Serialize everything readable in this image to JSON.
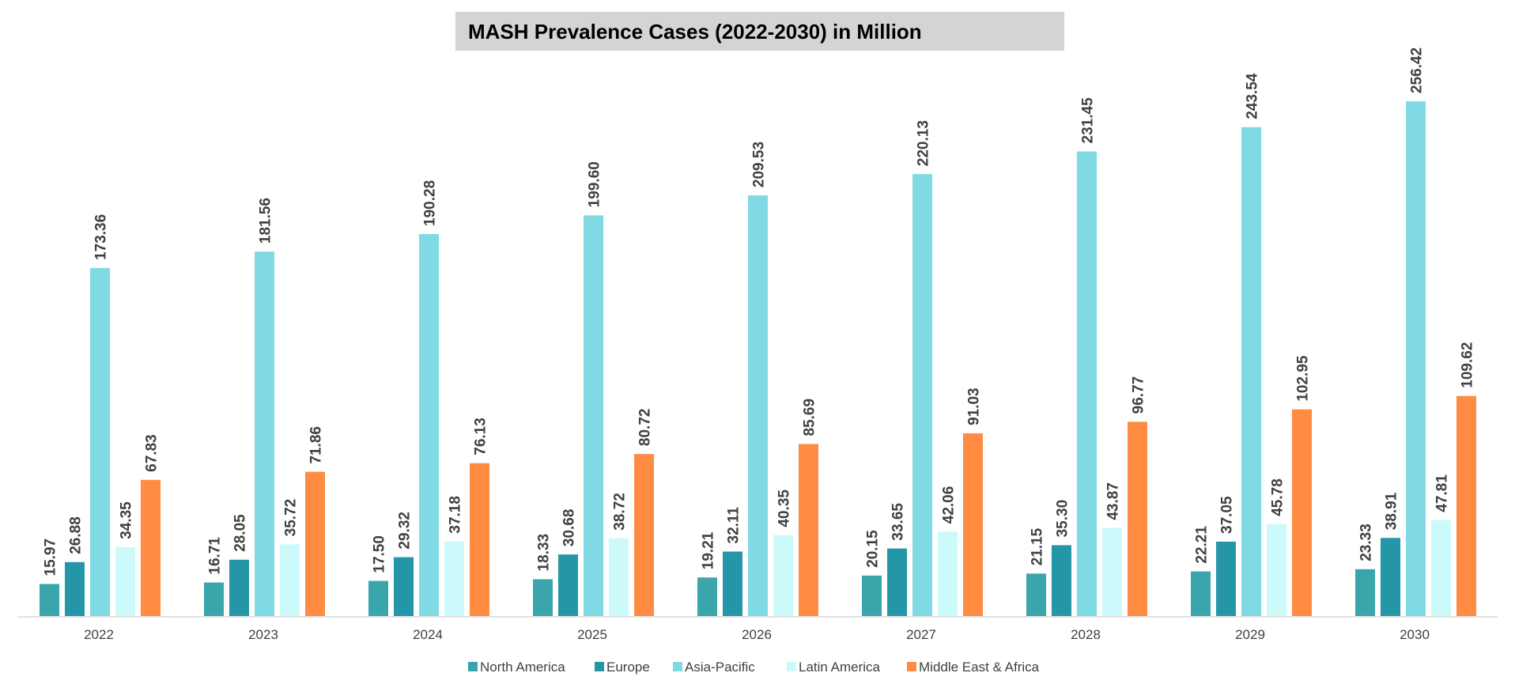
{
  "chart_data": {
    "type": "bar",
    "title": "MASH Prevalence Cases (2022-2030) in Million",
    "xlabel": "",
    "ylabel": "",
    "ylim": [
      0,
      280
    ],
    "grid": false,
    "legend_position": "bottom",
    "categories": [
      "2022",
      "2023",
      "2024",
      "2025",
      "2026",
      "2027",
      "2028",
      "2029",
      "2030"
    ],
    "series": [
      {
        "name": "North America",
        "color": "#3BA5AC",
        "values": [
          15.97,
          16.71,
          17.5,
          18.33,
          19.21,
          20.15,
          21.15,
          22.21,
          23.33
        ],
        "labels": [
          "15.97",
          "16.71",
          "17.50",
          "18.33",
          "19.21",
          "20.15",
          "21.15",
          "22.21",
          "23.33"
        ]
      },
      {
        "name": "Europe",
        "color": "#2596A8",
        "values": [
          26.88,
          28.05,
          29.32,
          30.68,
          32.11,
          33.65,
          35.3,
          37.05,
          38.91
        ],
        "labels": [
          "26.88",
          "28.05",
          "29.32",
          "30.68",
          "32.11",
          "33.65",
          "35.30",
          "37.05",
          "38.91"
        ]
      },
      {
        "name": "Asia-Pacific",
        "color": "#7FDAE3",
        "values": [
          173.36,
          181.56,
          190.28,
          199.6,
          209.53,
          220.13,
          231.45,
          243.54,
          256.42
        ],
        "labels": [
          "173.36",
          "181.56",
          "190.28",
          "199.60",
          "209.53",
          "220.13",
          "231.45",
          "243.54",
          "256.42"
        ]
      },
      {
        "name": "Latin America",
        "color": "#CCFAFB",
        "values": [
          34.35,
          35.72,
          37.18,
          38.72,
          40.35,
          42.06,
          43.87,
          45.78,
          47.81
        ],
        "labels": [
          "34.35",
          "35.72",
          "37.18",
          "38.72",
          "40.35",
          "42.06",
          "43.87",
          "45.78",
          "47.81"
        ]
      },
      {
        "name": "Middle East & Africa",
        "color": "#FF8C42",
        "values": [
          67.83,
          71.86,
          76.13,
          80.72,
          85.69,
          91.03,
          96.77,
          102.95,
          109.62
        ],
        "labels": [
          "67.83",
          "71.86",
          "76.13",
          "80.72",
          "85.69",
          "91.03",
          "96.77",
          "102.95",
          "109.62"
        ]
      }
    ]
  },
  "colors": {
    "title_box": "#D4D4D4",
    "axis": "#D9D9D9",
    "text": "#404040"
  }
}
